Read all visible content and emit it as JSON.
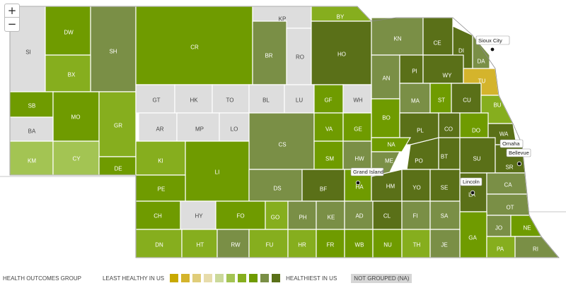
{
  "zoom": {
    "in_label": "+",
    "out_label": "−"
  },
  "legend": {
    "title": "HEALTH OUTCOMES GROUP",
    "least": "LEAST HEALTHY IN US",
    "healthiest": "HEALTHIEST IN US",
    "not_grouped": "NOT GROUPED (NA)",
    "colors": [
      "#c8a900",
      "#d4b42c",
      "#e0cd7a",
      "#e7dcab",
      "#cbd99a",
      "#a3c453",
      "#86ae1e",
      "#6f9b00",
      "#7a8f46",
      "#5a7018"
    ]
  },
  "colors": {
    "not_grouped": "#dddddd",
    "outline": "#8a8a8a"
  },
  "counties": [
    {
      "label": "SI",
      "color": "#dddddd"
    },
    {
      "label": "DW",
      "color": "#6f9b00"
    },
    {
      "label": "SH",
      "color": "#7a8f46"
    },
    {
      "label": "CR",
      "color": "#6f9b00"
    },
    {
      "label": "KP",
      "color": "#dddddd"
    },
    {
      "label": "BY",
      "color": "#86ae1e"
    },
    {
      "label": "BR",
      "color": "#7a8f46"
    },
    {
      "label": "RO",
      "color": "#dddddd"
    },
    {
      "label": "HO",
      "color": "#5a7018"
    },
    {
      "label": "KN",
      "color": "#7a8f46"
    },
    {
      "label": "CE",
      "color": "#5a7018"
    },
    {
      "label": "DI",
      "color": "#5a7018"
    },
    {
      "label": "DA",
      "color": "#7a8f46"
    },
    {
      "label": "BX",
      "color": "#86ae1e"
    },
    {
      "label": "AN",
      "color": "#7a8f46"
    },
    {
      "label": "PI",
      "color": "#5a7018"
    },
    {
      "label": "WY",
      "color": "#5a7018"
    },
    {
      "label": "TU",
      "color": "#d4b42c"
    },
    {
      "label": "SB",
      "color": "#6f9b00"
    },
    {
      "label": "MO",
      "color": "#6f9b00"
    },
    {
      "label": "GR",
      "color": "#86ae1e"
    },
    {
      "label": "GT",
      "color": "#dddddd"
    },
    {
      "label": "HK",
      "color": "#dddddd"
    },
    {
      "label": "TO",
      "color": "#dddddd"
    },
    {
      "label": "BL",
      "color": "#dddddd"
    },
    {
      "label": "LU",
      "color": "#dddddd"
    },
    {
      "label": "GF",
      "color": "#6f9b00"
    },
    {
      "label": "WH",
      "color": "#dddddd"
    },
    {
      "label": "MA",
      "color": "#7a8f46"
    },
    {
      "label": "ST",
      "color": "#6f9b00"
    },
    {
      "label": "CU",
      "color": "#5a7018"
    },
    {
      "label": "BU",
      "color": "#86ae1e"
    },
    {
      "label": "BA",
      "color": "#dddddd"
    },
    {
      "label": "AR",
      "color": "#dddddd"
    },
    {
      "label": "MP",
      "color": "#dddddd"
    },
    {
      "label": "LO",
      "color": "#dddddd"
    },
    {
      "label": "CS",
      "color": "#7a8f46"
    },
    {
      "label": "VA",
      "color": "#6f9b00"
    },
    {
      "label": "GE",
      "color": "#6f9b00"
    },
    {
      "label": "BO",
      "color": "#6f9b00"
    },
    {
      "label": "PL",
      "color": "#5a7018"
    },
    {
      "label": "CO",
      "color": "#5a7018"
    },
    {
      "label": "DO",
      "color": "#6f9b00"
    },
    {
      "label": "WA",
      "color": "#5a7018"
    },
    {
      "label": "KM",
      "color": "#a3c453"
    },
    {
      "label": "CY",
      "color": "#a3c453"
    },
    {
      "label": "DE",
      "color": "#6f9b00"
    },
    {
      "label": "KI",
      "color": "#86ae1e"
    },
    {
      "label": "SM",
      "color": "#6f9b00"
    },
    {
      "label": "HW",
      "color": "#7a8f46"
    },
    {
      "label": "NA",
      "color": "#6f9b00"
    },
    {
      "label": "ME",
      "color": "#7a8f46"
    },
    {
      "label": "PO",
      "color": "#5a7018"
    },
    {
      "label": "BT",
      "color": "#5a7018"
    },
    {
      "label": "SU",
      "color": "#5a7018"
    },
    {
      "label": "SR",
      "color": "#5a7018"
    },
    {
      "label": "LI",
      "color": "#6f9b00"
    },
    {
      "label": "PE",
      "color": "#6f9b00"
    },
    {
      "label": "DS",
      "color": "#7a8f46"
    },
    {
      "label": "BF",
      "color": "#5a7018"
    },
    {
      "label": "HA",
      "color": "#6f9b00"
    },
    {
      "label": "HM",
      "color": "#5a7018"
    },
    {
      "label": "YO",
      "color": "#5a7018"
    },
    {
      "label": "SE",
      "color": "#5a7018"
    },
    {
      "label": "LA",
      "color": "#5a7018"
    },
    {
      "label": "CA",
      "color": "#7a8f46"
    },
    {
      "label": "CH",
      "color": "#6f9b00"
    },
    {
      "label": "HY",
      "color": "#dddddd"
    },
    {
      "label": "FO",
      "color": "#6f9b00"
    },
    {
      "label": "GO",
      "color": "#86ae1e"
    },
    {
      "label": "PH",
      "color": "#7a8f46"
    },
    {
      "label": "KE",
      "color": "#7a8f46"
    },
    {
      "label": "AD",
      "color": "#7a8f46"
    },
    {
      "label": "CL",
      "color": "#5a7018"
    },
    {
      "label": "FI",
      "color": "#7a8f46"
    },
    {
      "label": "SA",
      "color": "#7a8f46"
    },
    {
      "label": "OT",
      "color": "#7a8f46"
    },
    {
      "label": "JO",
      "color": "#7a8f46"
    },
    {
      "label": "NE",
      "color": "#6f9b00"
    },
    {
      "label": "GA",
      "color": "#6f9b00"
    },
    {
      "label": "DN",
      "color": "#86ae1e"
    },
    {
      "label": "HT",
      "color": "#86ae1e"
    },
    {
      "label": "RW",
      "color": "#7a8f46"
    },
    {
      "label": "FU",
      "color": "#86ae1e"
    },
    {
      "label": "HR",
      "color": "#86ae1e"
    },
    {
      "label": "FR",
      "color": "#6f9b00"
    },
    {
      "label": "WB",
      "color": "#6f9b00"
    },
    {
      "label": "NU",
      "color": "#6f9b00"
    },
    {
      "label": "TH",
      "color": "#86ae1e"
    },
    {
      "label": "JE",
      "color": "#7a8f46"
    },
    {
      "label": "PA",
      "color": "#86ae1e"
    },
    {
      "label": "RI",
      "color": "#7a8f46"
    }
  ],
  "cities": [
    {
      "name": "Sioux City"
    },
    {
      "name": "Omaha"
    },
    {
      "name": "Bellevue"
    },
    {
      "name": "Grand Island"
    },
    {
      "name": "Lincoln"
    }
  ]
}
